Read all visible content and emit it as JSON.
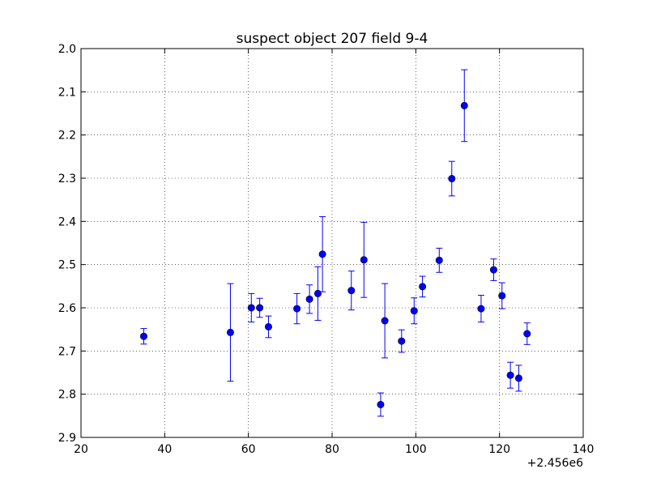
{
  "chart_data": {
    "type": "scatter",
    "title": "suspect object 207 field 9-4",
    "xlabel": "",
    "ylabel": "",
    "x_offset_label": "+2.456e6",
    "xlim": [
      20,
      140
    ],
    "ylim": [
      2.0,
      2.9
    ],
    "y_inverted": true,
    "grid": true,
    "x_ticks": [
      "20",
      "40",
      "60",
      "80",
      "100",
      "120",
      "140"
    ],
    "y_ticks": [
      "2.0",
      "2.1",
      "2.2",
      "2.3",
      "2.4",
      "2.5",
      "2.6",
      "2.7",
      "2.8",
      "2.9"
    ],
    "color": "#0000ff",
    "points": [
      {
        "x": 35.0,
        "y": 2.666,
        "err": 0.018
      },
      {
        "x": 55.7,
        "y": 2.657,
        "err": 0.113
      },
      {
        "x": 60.7,
        "y": 2.6,
        "err": 0.033
      },
      {
        "x": 62.7,
        "y": 2.6,
        "err": 0.022
      },
      {
        "x": 64.8,
        "y": 2.644,
        "err": 0.025
      },
      {
        "x": 71.6,
        "y": 2.602,
        "err": 0.035
      },
      {
        "x": 74.6,
        "y": 2.58,
        "err": 0.033
      },
      {
        "x": 76.6,
        "y": 2.567,
        "err": 0.062
      },
      {
        "x": 77.7,
        "y": 2.476,
        "err": 0.087
      },
      {
        "x": 84.6,
        "y": 2.56,
        "err": 0.045
      },
      {
        "x": 87.6,
        "y": 2.489,
        "err": 0.087
      },
      {
        "x": 91.6,
        "y": 2.824,
        "err": 0.027
      },
      {
        "x": 92.6,
        "y": 2.63,
        "err": 0.086
      },
      {
        "x": 96.6,
        "y": 2.677,
        "err": 0.026
      },
      {
        "x": 99.6,
        "y": 2.607,
        "err": 0.03
      },
      {
        "x": 101.6,
        "y": 2.551,
        "err": 0.024
      },
      {
        "x": 105.6,
        "y": 2.49,
        "err": 0.028
      },
      {
        "x": 108.6,
        "y": 2.301,
        "err": 0.04
      },
      {
        "x": 111.6,
        "y": 2.132,
        "err": 0.083
      },
      {
        "x": 115.6,
        "y": 2.602,
        "err": 0.031
      },
      {
        "x": 118.6,
        "y": 2.512,
        "err": 0.025
      },
      {
        "x": 120.6,
        "y": 2.572,
        "err": 0.03
      },
      {
        "x": 122.6,
        "y": 2.756,
        "err": 0.03
      },
      {
        "x": 124.6,
        "y": 2.763,
        "err": 0.03
      },
      {
        "x": 126.6,
        "y": 2.66,
        "err": 0.025
      }
    ]
  }
}
